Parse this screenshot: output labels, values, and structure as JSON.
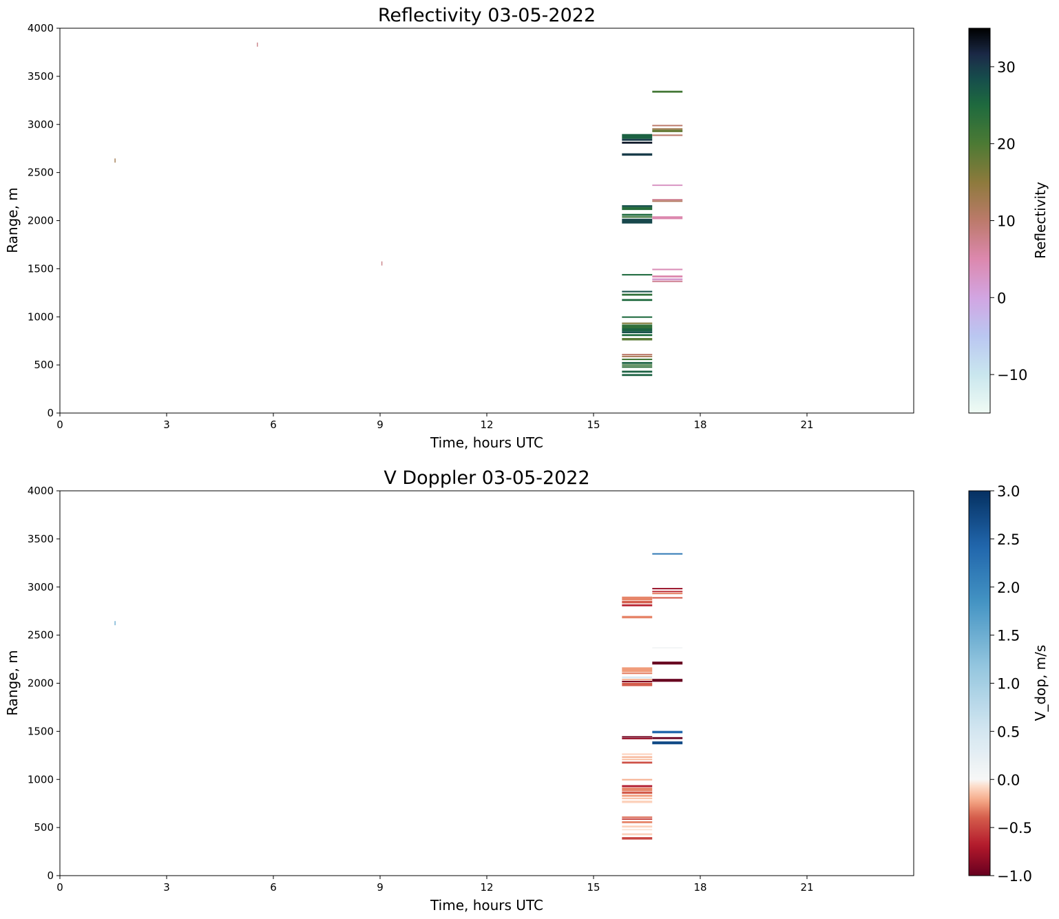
{
  "chart_data": [
    {
      "type": "heatmap",
      "id": "refl",
      "title": "Reflectivity 03-05-2022",
      "xlabel": "Time, hours UTC",
      "ylabel": "Range, m",
      "xlim": [
        0,
        24
      ],
      "ylim": [
        0,
        4000
      ],
      "xticks": [
        0,
        3,
        6,
        9,
        12,
        15,
        18,
        21
      ],
      "yticks": [
        0,
        500,
        1000,
        1500,
        2000,
        2500,
        3000,
        3500,
        4000
      ],
      "grid": false,
      "colorbar": {
        "label": "Reflectivity",
        "colormap": "cubehelix_r",
        "range": [
          -15,
          35
        ],
        "ticks": [
          -10,
          0,
          10,
          20,
          30
        ],
        "tick_labels": [
          "−10",
          "0",
          "10",
          "20",
          "30"
        ]
      },
      "segments": [
        {
          "t0": 15.8,
          "t1": 16.65,
          "range_bins": [
            [
              2850,
              2900,
              26
            ],
            [
              2830,
              2850,
              30
            ],
            [
              2800,
              2820,
              33
            ],
            [
              2675,
              2700,
              30
            ],
            [
              2140,
              2160,
              28
            ],
            [
              2110,
              2140,
              24
            ],
            [
              2050,
              2070,
              25
            ],
            [
              2030,
              2045,
              22
            ],
            [
              1970,
              2020,
              29
            ],
            [
              1430,
              1445,
              25
            ],
            [
              1255,
              1270,
              28
            ],
            [
              1220,
              1240,
              23
            ],
            [
              1165,
              1185,
              25
            ],
            [
              990,
              1005,
              25
            ],
            [
              925,
              940,
              16
            ],
            [
              880,
              920,
              23
            ],
            [
              850,
              880,
              26
            ],
            [
              830,
              850,
              28
            ],
            [
              800,
              820,
              25
            ],
            [
              755,
              780,
              19
            ],
            [
              605,
              615,
              10
            ],
            [
              580,
              595,
              12
            ],
            [
              550,
              565,
              21
            ],
            [
              510,
              530,
              26
            ],
            [
              490,
              505,
              22
            ],
            [
              470,
              485,
              23
            ],
            [
              420,
              440,
              26
            ],
            [
              385,
              405,
              26
            ]
          ]
        },
        {
          "t0": 16.65,
          "t1": 17.5,
          "range_bins": [
            [
              3330,
              3350,
              21
            ],
            [
              2985,
              2995,
              10
            ],
            [
              2950,
              2960,
              13
            ],
            [
              2920,
              2945,
              18
            ],
            [
              2880,
              2895,
              10
            ],
            [
              2365,
              2375,
              3
            ],
            [
              2215,
              2225,
              7
            ],
            [
              2195,
              2210,
              11
            ],
            [
              2015,
              2045,
              5
            ],
            [
              1485,
              1500,
              4
            ],
            [
              1410,
              1430,
              5
            ],
            [
              1380,
              1400,
              2
            ],
            [
              1365,
              1375,
              7
            ]
          ]
        }
      ],
      "specks": [
        {
          "t": 1.55,
          "r": 2625,
          "value": 13
        },
        {
          "t": 5.55,
          "r": 3830,
          "value": 8
        },
        {
          "t": 9.05,
          "r": 1555,
          "value": 8
        }
      ]
    },
    {
      "type": "heatmap",
      "id": "vdop",
      "title": "V Doppler 03-05-2022",
      "xlabel": "Time, hours UTC",
      "ylabel": "Range, m",
      "xlim": [
        0,
        24
      ],
      "ylim": [
        0,
        4000
      ],
      "xticks": [
        0,
        3,
        6,
        9,
        12,
        15,
        18,
        21
      ],
      "yticks": [
        0,
        500,
        1000,
        1500,
        2000,
        2500,
        3000,
        3500,
        4000
      ],
      "grid": false,
      "colorbar": {
        "label": "V_dop, m/s",
        "colormap": "RdBu",
        "range": [
          -1,
          3
        ],
        "center": 0,
        "ticks": [
          -1.0,
          -0.5,
          0.0,
          0.5,
          1.0,
          1.5,
          2.0,
          2.5,
          3.0
        ],
        "tick_labels": [
          "−1.0",
          "−0.5",
          "0.0",
          "0.5",
          "1.0",
          "1.5",
          "2.0",
          "2.5",
          "3.0"
        ]
      },
      "segments": [
        {
          "t0": 15.8,
          "t1": 16.65,
          "range_bins": [
            [
              2860,
              2900,
              -0.3
            ],
            [
              2830,
              2855,
              -0.4
            ],
            [
              2800,
              2820,
              -0.65
            ],
            [
              2675,
              2700,
              -0.3
            ],
            [
              2115,
              2165,
              -0.25
            ],
            [
              2095,
              2110,
              -0.3
            ],
            [
              2050,
              2070,
              0.4
            ],
            [
              2030,
              2045,
              -0.2
            ],
            [
              2010,
              2025,
              -0.9
            ],
            [
              1970,
              2005,
              -0.4
            ],
            [
              1435,
              1450,
              -0.95
            ],
            [
              1420,
              1432,
              -0.8
            ],
            [
              1255,
              1270,
              -0.1
            ],
            [
              1225,
              1240,
              -0.2
            ],
            [
              1200,
              1215,
              -0.15
            ],
            [
              1165,
              1185,
              -0.45
            ],
            [
              990,
              1005,
              -0.2
            ],
            [
              920,
              940,
              -0.7
            ],
            [
              880,
              915,
              -0.3
            ],
            [
              850,
              875,
              -0.4
            ],
            [
              820,
              840,
              -0.25
            ],
            [
              795,
              810,
              -0.15
            ],
            [
              755,
              780,
              -0.1
            ],
            [
              605,
              615,
              -0.35
            ],
            [
              580,
              595,
              -0.5
            ],
            [
              545,
              565,
              -0.3
            ],
            [
              500,
              520,
              -0.1
            ],
            [
              470,
              485,
              -0.05
            ],
            [
              420,
              440,
              -0.1
            ],
            [
              375,
              400,
              -0.5
            ]
          ]
        },
        {
          "t0": 16.65,
          "t1": 17.5,
          "range_bins": [
            [
              3340,
              3352,
              2.2
            ],
            [
              2980,
              2990,
              -0.8
            ],
            [
              2950,
              2960,
              -0.6
            ],
            [
              2925,
              2940,
              -0.3
            ],
            [
              2880,
              2895,
              -0.4
            ],
            [
              2370,
              2375,
              0.05
            ],
            [
              2195,
              2225,
              -1.0
            ],
            [
              2015,
              2045,
              -1.0
            ],
            [
              1480,
              1505,
              2.4
            ],
            [
              1420,
              1440,
              -1.0
            ],
            [
              1365,
              1395,
              2.7
            ]
          ]
        }
      ],
      "specks": [
        {
          "t": 1.55,
          "r": 2625,
          "value": 1.5
        }
      ]
    }
  ]
}
